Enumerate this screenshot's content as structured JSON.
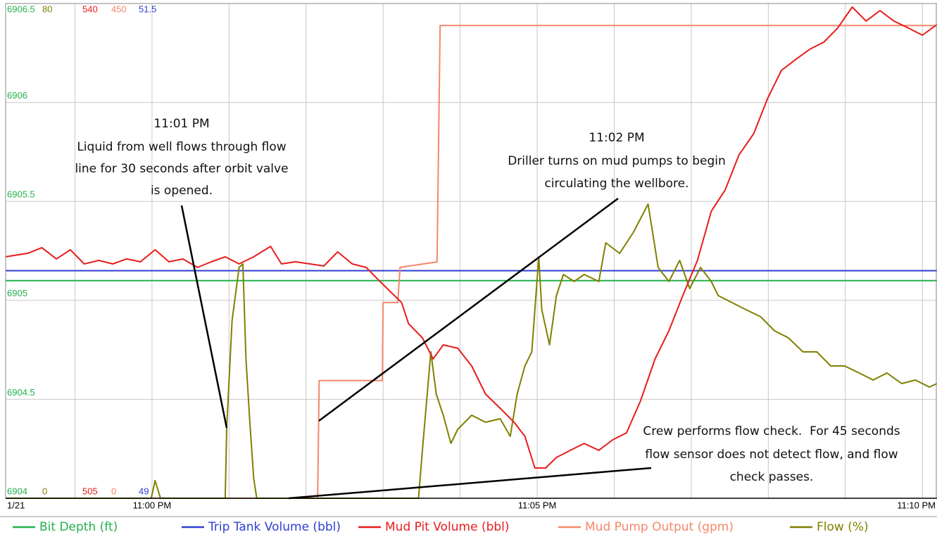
{
  "chart_data": {
    "type": "line",
    "xlim": [
      1378.1,
      1390.19
    ],
    "xticks": [
      {
        "value": 1378.1,
        "label": "1/21"
      },
      {
        "value": 1380,
        "label": "11:00 PM"
      },
      {
        "value": 1385,
        "label": "11:05 PM"
      },
      {
        "value": 1390,
        "label": "11:10 PM"
      }
    ],
    "xgrid": [
      1379,
      1380,
      1381,
      1382,
      1383,
      1384,
      1385,
      1386,
      1387,
      1388,
      1389,
      1390
    ],
    "grid": true,
    "series": [
      {
        "name": "Bit Depth (ft)",
        "color": "#22b14c",
        "ylim": [
          6904,
          6906.5
        ],
        "yticks": [
          6904,
          6904.5,
          6905,
          6905.5,
          6906,
          6906.5
        ],
        "x": [
          1378.1,
          1390.19
        ],
        "values": [
          6905.1,
          6905.1
        ]
      },
      {
        "name": "Trip Tank Volume (bbl)",
        "color": "#2f3fd0",
        "ylim": [
          49,
          51.5
        ],
        "yticks": [
          49,
          51.5
        ],
        "x": [
          1378.1,
          1390.19
        ],
        "values": [
          50.15,
          50.15
        ]
      },
      {
        "name": "Mud Pit Volume (bbl)",
        "color": "#e81c1c",
        "ylim": [
          505,
          540
        ],
        "yticks": [
          505,
          540
        ],
        "x": [
          1378.1,
          1378.39,
          1378.57,
          1378.76,
          1378.94,
          1379.12,
          1379.31,
          1379.49,
          1379.67,
          1379.85,
          1380.04,
          1380.22,
          1380.4,
          1380.59,
          1380.77,
          1380.95,
          1381.13,
          1381.32,
          1381.54,
          1381.68,
          1381.86,
          1382.05,
          1382.23,
          1382.41,
          1382.6,
          1382.78,
          1382.96,
          1383.24,
          1383.33,
          1383.51,
          1383.65,
          1383.78,
          1383.97,
          1384.15,
          1384.33,
          1384.52,
          1384.7,
          1384.84,
          1384.97,
          1385.11,
          1385.25,
          1385.43,
          1385.61,
          1385.8,
          1385.98,
          1386.16,
          1386.34,
          1386.53,
          1386.71,
          1386.89,
          1387.08,
          1387.26,
          1387.44,
          1387.62,
          1387.81,
          1387.99,
          1388.17,
          1388.35,
          1388.54,
          1388.72,
          1388.9,
          1389.09,
          1389.27,
          1389.45,
          1389.63,
          1389.82,
          1390.0,
          1390.19
        ],
        "values": [
          522.08,
          522.33,
          522.73,
          521.93,
          522.58,
          521.58,
          521.83,
          521.58,
          521.93,
          521.73,
          522.58,
          521.73,
          521.93,
          521.33,
          521.73,
          522.08,
          521.58,
          522.08,
          522.82,
          521.58,
          521.73,
          521.58,
          521.43,
          522.43,
          521.58,
          521.33,
          520.34,
          518.84,
          517.35,
          516.35,
          514.86,
          515.85,
          515.61,
          514.36,
          512.37,
          511.37,
          510.38,
          509.38,
          507.14,
          507.14,
          507.89,
          508.39,
          508.88,
          508.39,
          509.13,
          509.63,
          511.87,
          514.86,
          516.85,
          519.34,
          521.83,
          525.31,
          526.81,
          529.3,
          530.79,
          533.28,
          535.27,
          536.02,
          536.77,
          537.26,
          538.26,
          539.75,
          538.76,
          539.5,
          538.76,
          538.26,
          537.76,
          538.51
        ]
      },
      {
        "name": "Mud Pump Output (gpm)",
        "color": "#f4876b",
        "ylim": [
          0,
          450
        ],
        "yticks": [
          0,
          450
        ],
        "x": [
          1378.1,
          1382.15,
          1382.17,
          1382.99,
          1383.0,
          1383.19,
          1383.22,
          1383.7,
          1383.74,
          1390.19
        ],
        "values": [
          0,
          0,
          107,
          107,
          178,
          178,
          210,
          215,
          430,
          430
        ]
      },
      {
        "name": "Flow (%)",
        "color": "#808000",
        "ylim": [
          0,
          80
        ],
        "yticks": [
          0,
          80
        ],
        "x": [
          1378.1,
          1379.99,
          1380.04,
          1380.11,
          1380.95,
          1380.97,
          1381.04,
          1381.13,
          1381.18,
          1381.22,
          1381.27,
          1381.32,
          1381.36,
          1383.46,
          1383.51,
          1383.62,
          1383.69,
          1383.78,
          1383.88,
          1383.97,
          1384.06,
          1384.15,
          1384.33,
          1384.52,
          1384.65,
          1384.74,
          1384.84,
          1384.93,
          1385.02,
          1385.06,
          1385.16,
          1385.25,
          1385.34,
          1385.48,
          1385.61,
          1385.8,
          1385.89,
          1386.07,
          1386.25,
          1386.44,
          1386.57,
          1386.71,
          1386.85,
          1386.98,
          1387.12,
          1387.26,
          1387.35,
          1387.53,
          1387.71,
          1387.9,
          1388.08,
          1388.26,
          1388.45,
          1388.63,
          1388.81,
          1388.99,
          1389.18,
          1389.36,
          1389.54,
          1389.73,
          1389.91,
          1390.09,
          1390.19
        ],
        "values": [
          0,
          0,
          2.85,
          0,
          0,
          11.72,
          28.79,
          37.33,
          37.9,
          22.53,
          12.29,
          3.19,
          0,
          0,
          7.74,
          23.67,
          16.84,
          13.43,
          8.88,
          11.15,
          12.29,
          13.43,
          12.29,
          12.86,
          10.01,
          16.84,
          21.39,
          23.67,
          39.03,
          30.5,
          24.81,
          32.77,
          36.19,
          35.05,
          36.19,
          35.05,
          41.31,
          39.6,
          43.02,
          47.57,
          37.33,
          35.05,
          38.46,
          33.91,
          37.33,
          35.05,
          32.77,
          31.64,
          30.5,
          29.36,
          27.08,
          25.95,
          23.67,
          23.67,
          21.39,
          21.39,
          20.26,
          19.12,
          20.26,
          18.55,
          19.12,
          17.98,
          18.55
        ]
      }
    ],
    "annotations": [
      {
        "lines": [
          "11:01 PM",
          "Liquid from well flows through flow",
          "line for 30 seconds after orbit valve",
          "is opened."
        ]
      },
      {
        "lines": [
          "11:02 PM",
          "Driller turns on mud pumps to begin",
          "circulating the wellbore."
        ]
      },
      {
        "lines": [
          "Crew performs flow check.  For 45 seconds",
          "flow sensor does not detect flow, and flow",
          "check passes."
        ]
      }
    ]
  }
}
